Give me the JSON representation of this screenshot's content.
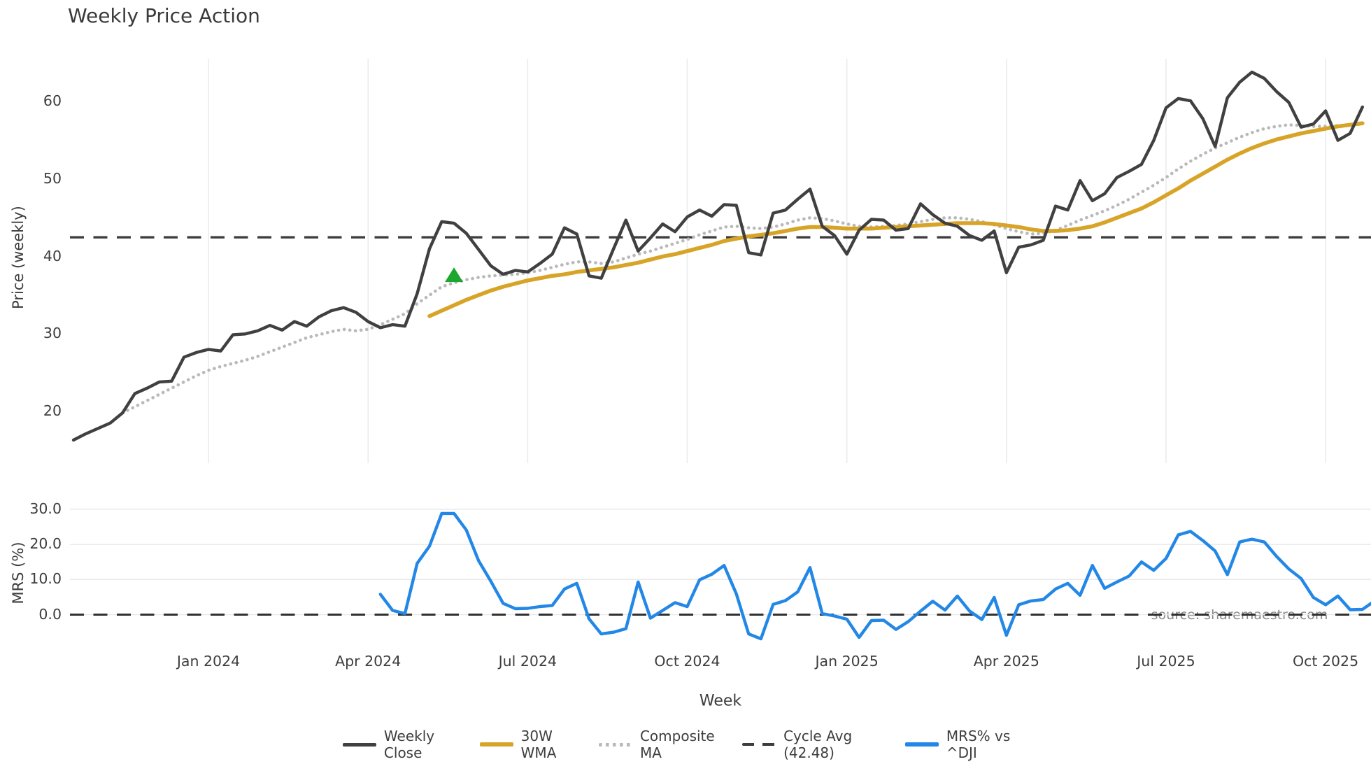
{
  "title": "Weekly Price Action",
  "source_note": "source: sharemaestro.com",
  "x_axis": {
    "label": "Week",
    "tick_labels": [
      "Jan 2024",
      "Apr 2024",
      "Jul 2024",
      "Oct 2024",
      "Jan 2025",
      "Apr 2025",
      "Jul 2025",
      "Oct 2025"
    ],
    "tick_weeks": [
      11,
      24,
      37,
      50,
      63,
      76,
      89,
      102
    ]
  },
  "price_panel": {
    "y_axis_label": "Price (weekly)",
    "y_ticks": [
      20,
      30,
      40,
      50,
      60
    ]
  },
  "mrs_panel": {
    "y_axis_label": "MRS (%)",
    "y_tick_labels": [
      "0.0",
      "10.0",
      "20.0",
      "30.0"
    ],
    "y_tick_values": [
      0,
      10,
      20,
      30
    ]
  },
  "legend": {
    "items": [
      {
        "label": "Weekly Close",
        "style": "solid",
        "color": "#404040"
      },
      {
        "label": "30W WMA",
        "style": "solid",
        "color": "#d8a428"
      },
      {
        "label": "Composite MA",
        "style": "dotted",
        "color": "#b9b9b9"
      },
      {
        "label": "Cycle Avg (42.48)",
        "style": "dashed",
        "color": "#3d3d3d"
      },
      {
        "label": "MRS% vs ^DJI",
        "style": "solid",
        "color": "#2287e6"
      }
    ]
  },
  "colors": {
    "weekly_close": "#404040",
    "wma30": "#d8a428",
    "composite": "#b9b9b9",
    "cycle_avg": "#3d3d3d",
    "mrs": "#2287e6",
    "signal_marker": "#1ea62e",
    "grid_price": "#e8eced",
    "grid_mrs": "#e9e9e9",
    "zero_dash": "#303030"
  },
  "chart_data": [
    {
      "panel": "price",
      "type": "line",
      "title": "Weekly Price Action",
      "xlabel": "Week",
      "ylabel": "Price (weekly)",
      "ylim": [
        13.5,
        66
      ],
      "grid": "vertical-quarterly",
      "legend_position": "bottom-center",
      "x_unit": "week_index_from_first_point",
      "x_ticks": {
        "weeks": [
          11,
          24,
          37,
          50,
          63,
          76,
          89,
          102
        ],
        "labels": [
          "Jan 2024",
          "Apr 2024",
          "Jul 2024",
          "Oct 2024",
          "Jan 2025",
          "Apr 2025",
          "Jul 2025",
          "Oct 2025"
        ]
      },
      "cycle_avg": 42.48,
      "series": [
        {
          "name": "Weekly Close",
          "start_week": 0,
          "values": [
            16.3,
            17.1,
            17.8,
            18.5,
            19.8,
            22.3,
            23.0,
            23.8,
            23.9,
            27.0,
            27.6,
            28.0,
            27.8,
            29.9,
            30.0,
            30.4,
            31.1,
            30.5,
            31.6,
            31.0,
            32.2,
            33.0,
            33.4,
            32.8,
            31.6,
            30.8,
            31.2,
            31.0,
            35.2,
            41.0,
            44.5,
            44.3,
            43.0,
            40.9,
            38.8,
            37.7,
            38.2,
            38.0,
            39.1,
            40.3,
            43.7,
            42.9,
            37.5,
            37.2,
            41.0,
            44.7,
            40.7,
            42.4,
            44.2,
            43.2,
            45.1,
            46.0,
            45.2,
            46.7,
            46.6,
            40.5,
            40.2,
            45.6,
            46.0,
            47.4,
            48.7,
            43.9,
            42.7,
            40.3,
            43.4,
            44.8,
            44.7,
            43.4,
            43.6,
            46.8,
            45.4,
            44.3,
            43.9,
            42.7,
            42.1,
            43.3,
            37.9,
            41.2,
            41.5,
            42.1,
            46.5,
            46.0,
            49.8,
            47.2,
            48.1,
            50.2,
            51.0,
            51.9,
            55.0,
            59.2,
            60.4,
            60.1,
            57.8,
            54.2,
            60.5,
            62.5,
            63.8,
            63.0,
            61.3,
            59.9,
            56.7,
            57.1,
            58.8,
            55.0,
            55.9,
            59.3
          ]
        },
        {
          "name": "30W WMA",
          "start_week": 29,
          "values": [
            32.3,
            33.0,
            33.7,
            34.4,
            35.0,
            35.6,
            36.1,
            36.5,
            36.9,
            37.2,
            37.5,
            37.7,
            38.0,
            38.2,
            38.4,
            38.6,
            38.9,
            39.2,
            39.6,
            40.0,
            40.3,
            40.7,
            41.1,
            41.5,
            42.0,
            42.3,
            42.6,
            42.8,
            43.0,
            43.3,
            43.6,
            43.8,
            43.8,
            43.7,
            43.6,
            43.6,
            43.6,
            43.7,
            43.8,
            43.9,
            44.0,
            44.1,
            44.2,
            44.3,
            44.3,
            44.3,
            44.2,
            44.0,
            43.8,
            43.5,
            43.3,
            43.3,
            43.4,
            43.6,
            43.9,
            44.4,
            45.0,
            45.6,
            46.2,
            47.0,
            47.9,
            48.8,
            49.8,
            50.7,
            51.6,
            52.5,
            53.3,
            54.0,
            54.6,
            55.1,
            55.5,
            55.9,
            56.2,
            56.5,
            56.8,
            57.0,
            57.2
          ]
        },
        {
          "name": "Composite MA",
          "start_week": 4,
          "values": [
            19.8,
            20.6,
            21.4,
            22.2,
            23.0,
            23.8,
            24.6,
            25.3,
            25.8,
            26.2,
            26.6,
            27.1,
            27.7,
            28.3,
            28.9,
            29.5,
            29.9,
            30.3,
            30.6,
            30.4,
            30.6,
            31.2,
            31.9,
            32.6,
            33.9,
            35.0,
            36.1,
            36.6,
            37.0,
            37.3,
            37.5,
            37.6,
            37.7,
            37.9,
            38.2,
            38.6,
            39.0,
            39.3,
            39.3,
            39.1,
            39.3,
            39.8,
            40.3,
            40.7,
            41.2,
            41.7,
            42.2,
            42.8,
            43.3,
            43.8,
            43.9,
            43.7,
            43.6,
            43.8,
            44.2,
            44.7,
            45.0,
            44.9,
            44.6,
            44.2,
            43.9,
            43.8,
            43.9,
            44.0,
            44.2,
            44.5,
            44.8,
            45.0,
            45.0,
            44.8,
            44.5,
            44.1,
            43.6,
            43.2,
            42.9,
            43.0,
            43.4,
            44.0,
            44.7,
            45.3,
            45.9,
            46.6,
            47.4,
            48.3,
            49.2,
            50.2,
            51.3,
            52.3,
            53.2,
            54.0,
            54.7,
            55.4,
            56.0,
            56.5,
            56.8,
            57.0,
            56.9,
            56.8,
            56.8,
            56.9,
            57.0,
            57.1
          ]
        },
        {
          "name": "Cycle Avg",
          "type": "hline",
          "value": 42.48
        }
      ],
      "markers": [
        {
          "shape": "triangle-up",
          "color": "#1ea62e",
          "week": 31,
          "value": 37.6
        }
      ]
    },
    {
      "panel": "mrs",
      "type": "line",
      "ylabel": "MRS (%)",
      "ylim": [
        -11.5,
        34
      ],
      "grid": "horizontal",
      "zero_line": 0.0,
      "series": [
        {
          "name": "MRS% vs ^DJI",
          "start_week": 25,
          "values": [
            5.8,
            1.2,
            0.3,
            14.6,
            19.5,
            28.8,
            28.8,
            24.1,
            15.4,
            9.5,
            3.2,
            1.7,
            1.8,
            2.3,
            2.6,
            7.3,
            8.9,
            -1.2,
            -5.5,
            -5.0,
            -4.0,
            9.3,
            -1.0,
            1.2,
            3.4,
            2.3,
            9.9,
            11.5,
            14.0,
            5.9,
            -5.5,
            -6.9,
            2.9,
            4.0,
            6.5,
            13.4,
            0.3,
            -0.4,
            -1.3,
            -6.5,
            -1.7,
            -1.6,
            -4.2,
            -2.0,
            1.0,
            3.8,
            1.3,
            5.3,
            1.0,
            -1.4,
            4.9,
            -5.9,
            2.8,
            3.9,
            4.3,
            7.3,
            8.9,
            5.5,
            14.0,
            7.5,
            9.3,
            11.0,
            15.0,
            12.6,
            16.0,
            22.7,
            23.7,
            21.1,
            18.1,
            11.4,
            20.7,
            21.5,
            20.7,
            16.6,
            13.0,
            10.3,
            4.9,
            2.8,
            5.3,
            1.4,
            1.5,
            3.9
          ]
        }
      ]
    }
  ]
}
